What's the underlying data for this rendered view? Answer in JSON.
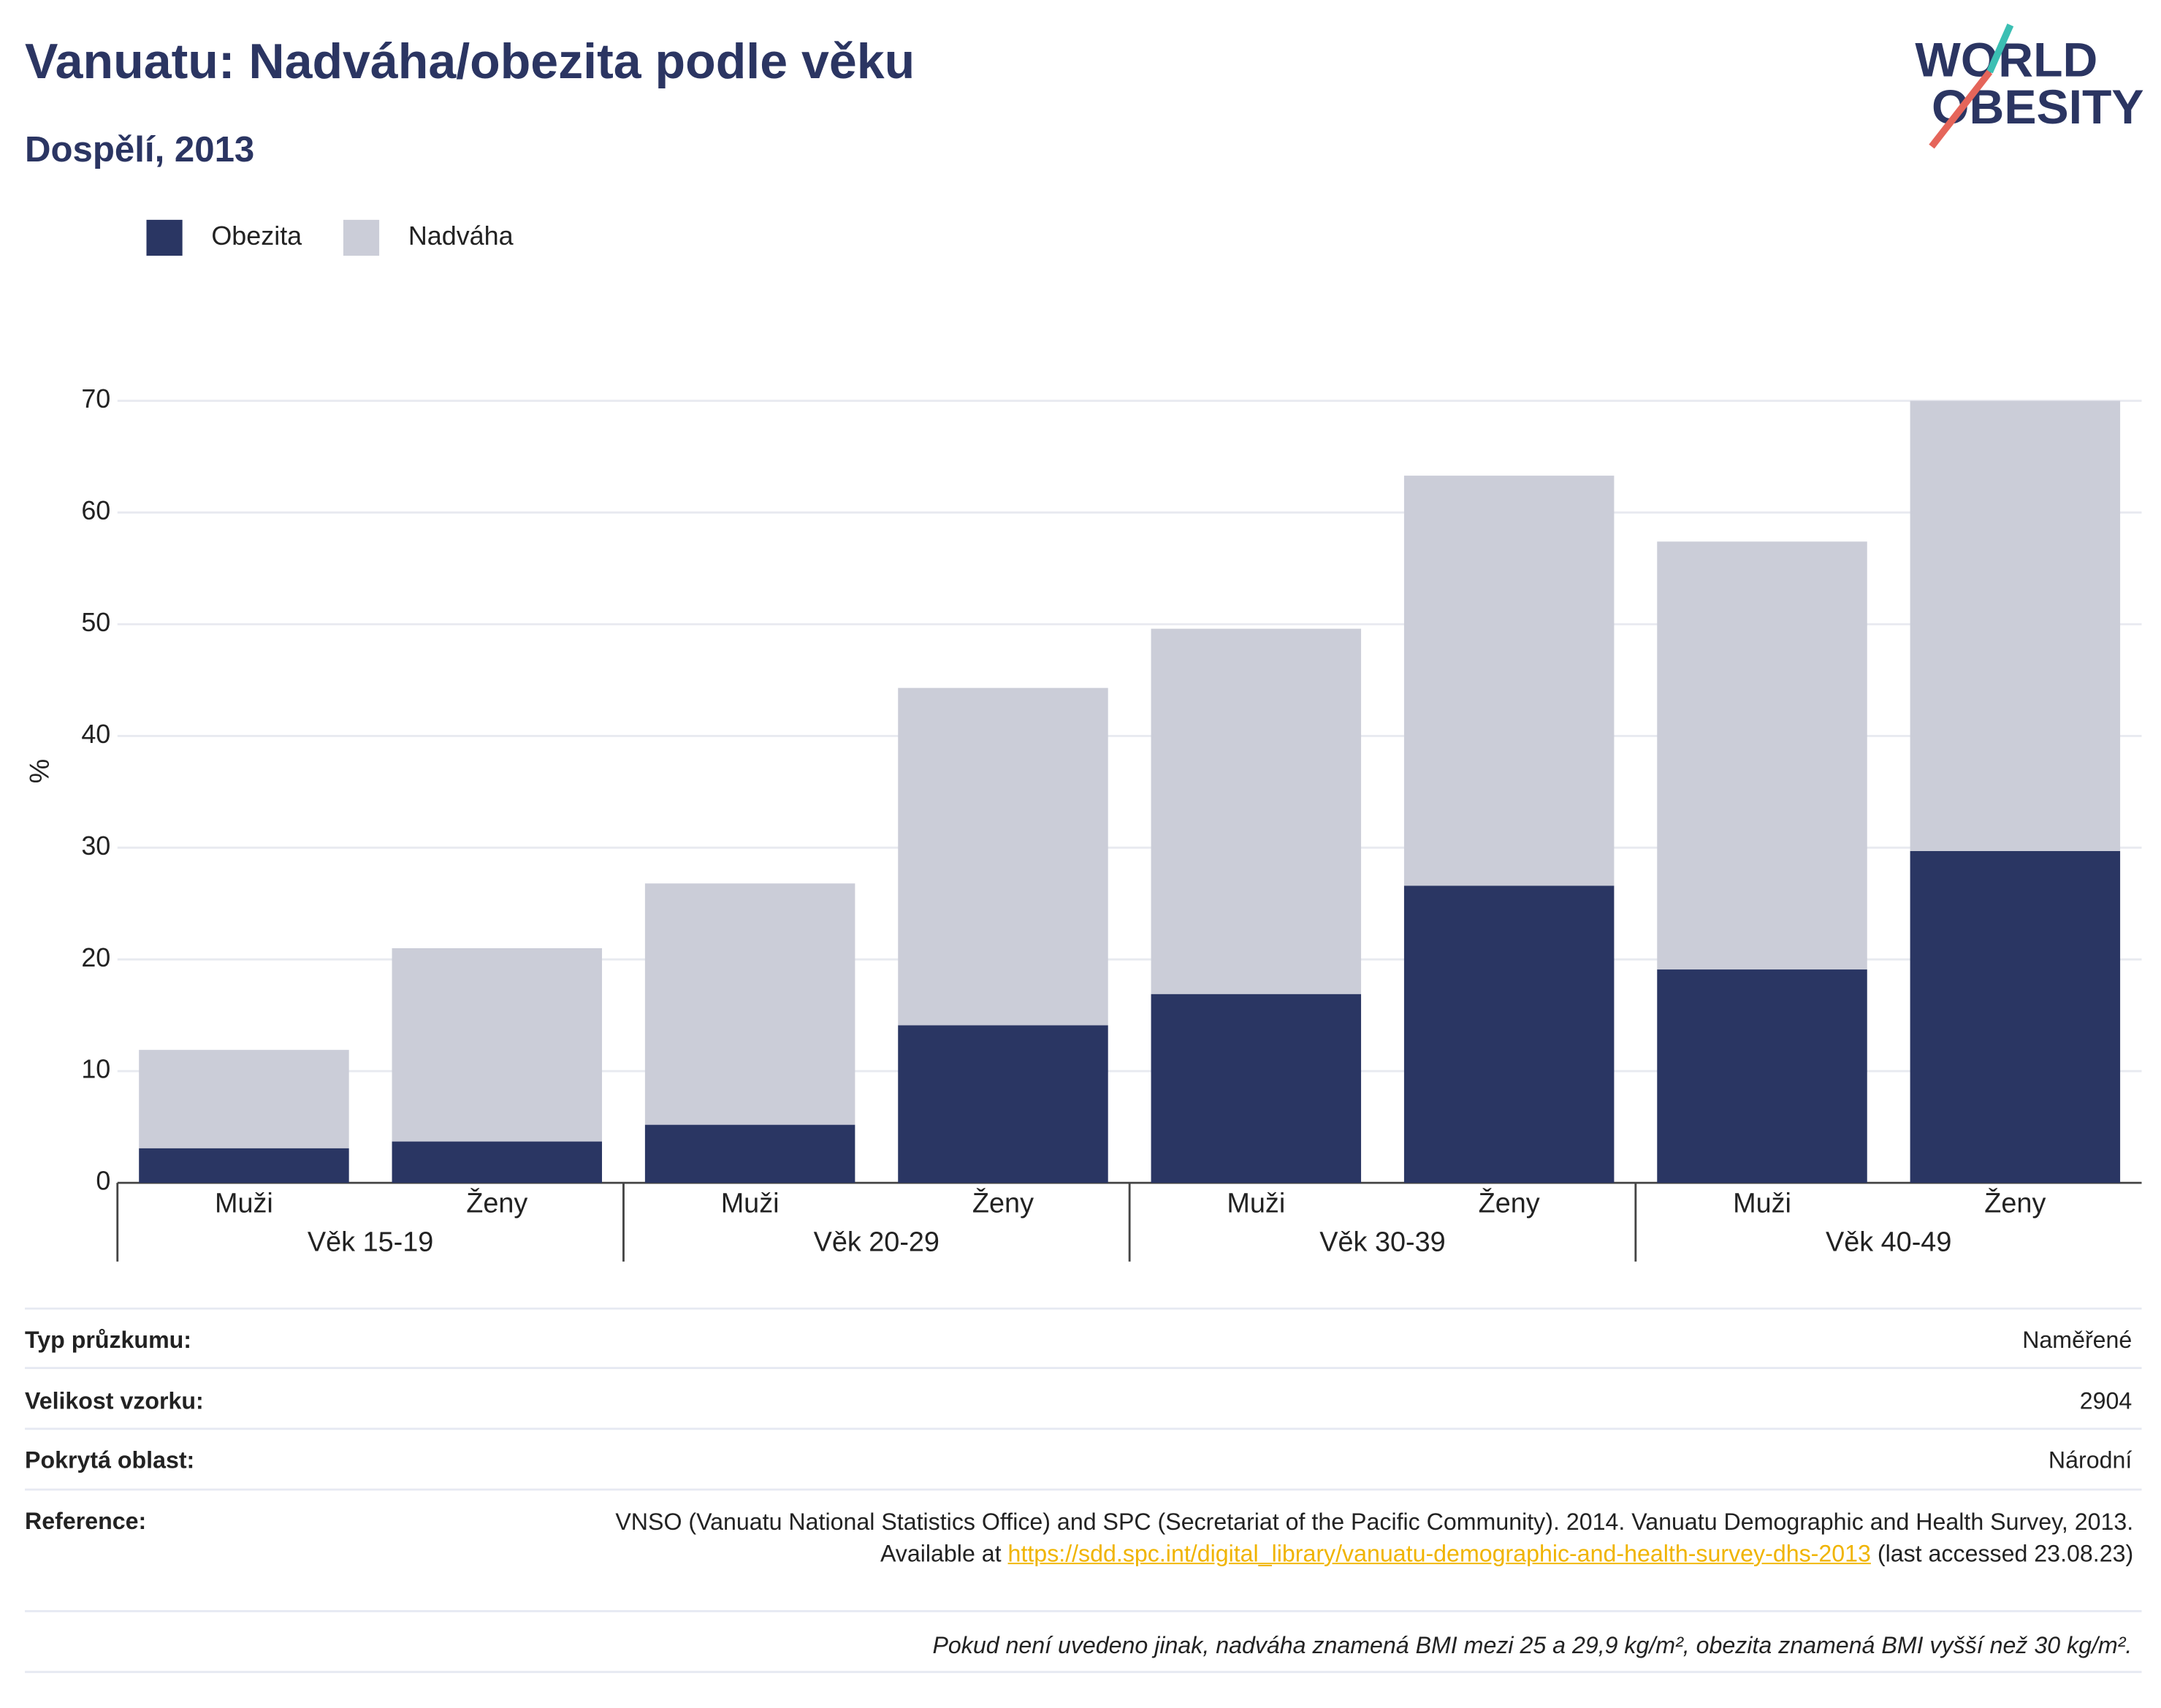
{
  "chart_data": {
    "type": "stacked_bar",
    "title": "Vanuatu: Nadváha/obezita podle věku",
    "subtitle": "Dospělí, 2013",
    "y_label": "%",
    "categories": [
      "Muži",
      "Ženy",
      "Muži",
      "Ženy",
      "Muži",
      "Ženy",
      "Muži",
      "Ženy"
    ],
    "groups": [
      "Věk 15-19",
      "Věk 20-29",
      "Věk 30-39",
      "Věk 40-49"
    ],
    "series": [
      {
        "name": "Obezita",
        "color": "#2a3663",
        "values": [
          3.1,
          3.7,
          5.2,
          14.1,
          16.9,
          26.6,
          19.1,
          29.7
        ]
      },
      {
        "name": "Nadváha",
        "color": "#cbcdd8",
        "values": [
          8.8,
          17.3,
          21.6,
          30.2,
          32.7,
          36.7,
          38.3,
          40.3
        ]
      }
    ],
    "ylim": [
      0,
      70
    ],
    "yticks": [
      0,
      10,
      20,
      30,
      40,
      50,
      60,
      70
    ],
    "grid": true,
    "legend": "top-left"
  },
  "logo": {
    "line1": "WORLD",
    "line2": "OBESITY"
  },
  "info": {
    "rows": [
      [
        "Typ průzkumu:",
        "Naměřené"
      ],
      [
        "Velikost vzorku:",
        "2904"
      ],
      [
        "Pokrytá oblast:",
        "Národní"
      ]
    ],
    "reference_label": "Reference:",
    "reference_text": "VNSO (Vanuatu National Statistics Office) and SPC (Secretariat of the Pacific Community). 2014. Vanuatu Demographic and Health Survey, 2013. Available at",
    "reference_link": "https://sdd.spc.int/digital_library/vanuatu-demographic-and-health-survey-dhs-2013",
    "reference_after": "(last accessed 23.08.23)",
    "footnote": "Pokud není uvedeno jinak, nadváha znamená BMI mezi 25 a 29,9 kg/m², obezita znamená BMI vyšší než 30 kg/m²."
  }
}
